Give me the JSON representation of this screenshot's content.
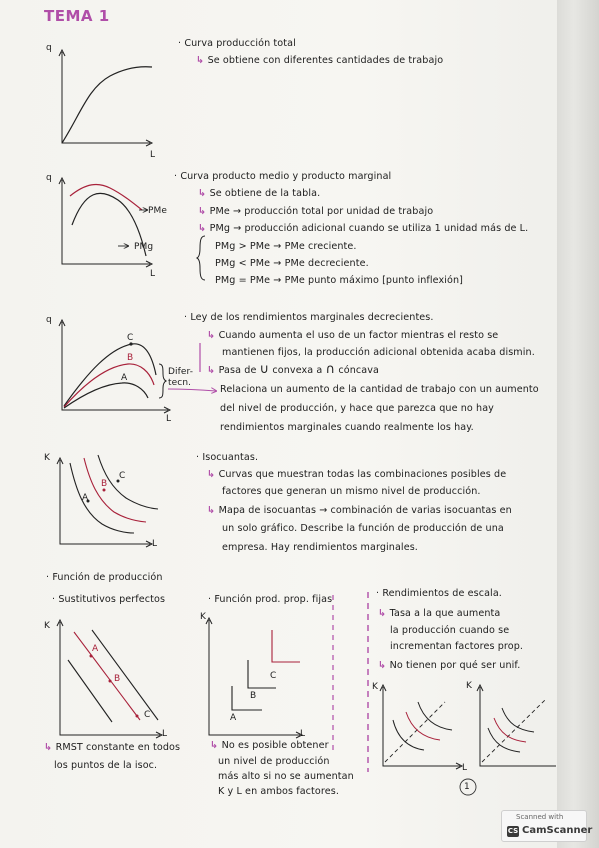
{
  "title": "TEMA 1",
  "page_number": "1",
  "colors": {
    "accent": "#b04ea8",
    "ink": "#1d1d1d",
    "red_curve": "#a8213a"
  },
  "sections": {
    "s1": {
      "heading": "Curva producción total",
      "sub": "Se obtiene con diferentes cantidades de trabajo",
      "axis_y": "q",
      "axis_x": "L"
    },
    "s2": {
      "heading": "Curva producto medio y producto marginal",
      "items": [
        "Se obtiene de la tabla.",
        "PMe → producción total por unidad de trabajo",
        "PMg → producción adicional cuando se utiliza 1 unidad más de L."
      ],
      "rules": [
        "PMg > PMe → PMe creciente.",
        "PMg < PMe → PMe decreciente.",
        "PMg = PMe → PMe punto máximo [punto inflexión]"
      ],
      "label_pme": "PMe",
      "label_pmg": "PMg",
      "axis_y": "q",
      "axis_x": "L"
    },
    "s3": {
      "heading": "Ley de los rendimientos marginales decrecientes.",
      "item1_l1": "Cuando aumenta el uso de un factor mientras el resto se",
      "item1_l2": "mantienen fijos, la producción adicional obtenida acaba dismin.",
      "item2_pre": "Pasa de",
      "item2_mid": "convexa a",
      "item2_post": "cóncava",
      "sym_u": "∪",
      "sym_n": "∩",
      "rel_l1": "Relaciona un aumento de la cantidad de trabajo con un aumento",
      "rel_l2": "del nivel de producción, y hace que parezca que no hay",
      "rel_l3": "rendimientos marginales cuando realmente los hay.",
      "brace_l1": "Difer-",
      "brace_l2": "tecn.",
      "curve_a": "A",
      "curve_b": "B",
      "curve_c": "C",
      "axis_y": "q",
      "axis_x": "L"
    },
    "s4": {
      "heading": "Isocuantas.",
      "i1_l1": "Curvas que muestran todas las combinaciones posibles de",
      "i1_l2": "factores que generan un mismo nivel de producción.",
      "i2_l1": "Mapa de isocuantas → combinación de varias isocuantas en",
      "i2_l2": "un solo gráfico. Describe la función de producción de una",
      "i2_l3": "empresa. Hay rendimientos marginales.",
      "curve_a": "A",
      "curve_b": "B",
      "curve_c": "C",
      "axis_y": "K",
      "axis_x": "L"
    },
    "s5": {
      "heading": "Función de producción",
      "col1": {
        "heading": "Sustitutivos perfectos",
        "n1_l1": "RMST constante en todos",
        "n1_l2": "los puntos de la isoc.",
        "pt_a": "A",
        "pt_b": "B",
        "pt_c": "C",
        "axis_y": "K",
        "axis_x": "L"
      },
      "col2": {
        "heading": "Función prod. prop. fijas",
        "n_l1": "No es posible obtener",
        "n_l2": "un nivel de producción",
        "n_l3": "más alto si no se aumentan",
        "n_l4": "K y L en ambos factores.",
        "pt_a": "A",
        "pt_b": "B",
        "pt_c": "C",
        "axis_y": "K",
        "axis_x": "L"
      },
      "col3": {
        "heading": "Rendimientos de escala.",
        "i1_l1": "Tasa a la que aumenta",
        "i1_l2": "la producción cuando se",
        "i1_l3": "incrementan factores prop.",
        "i2": "No tienen por qué ser unif.",
        "axis_y": "K",
        "axis_x": "L"
      }
    }
  },
  "scanner": {
    "line1": "Scanned with",
    "line2": "CamScanner",
    "logo": "CS"
  }
}
